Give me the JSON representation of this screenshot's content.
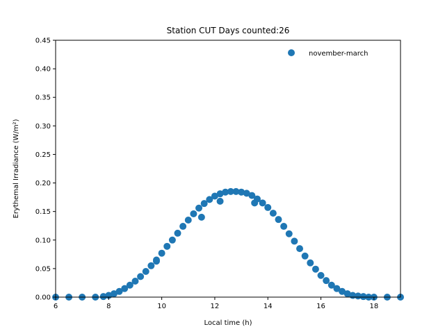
{
  "chart_data": {
    "type": "scatter",
    "title": "Station CUT Days counted:26",
    "xlabel": "Local time (h)",
    "ylabel": "Erythemal Irradiance (W/m²)",
    "xlim": [
      6,
      19
    ],
    "ylim": [
      0.0,
      0.45
    ],
    "xticks": [
      6,
      8,
      10,
      12,
      14,
      16,
      18
    ],
    "xtick_labels": [
      "6",
      "8",
      "10",
      "12",
      "14",
      "16",
      "18"
    ],
    "yticks": [
      0.0,
      0.05,
      0.1,
      0.15,
      0.2,
      0.25,
      0.3,
      0.35,
      0.4,
      0.45
    ],
    "ytick_labels": [
      "0.00",
      "0.05",
      "0.10",
      "0.15",
      "0.20",
      "0.25",
      "0.30",
      "0.35",
      "0.40",
      "0.45"
    ],
    "grid": false,
    "legend_position": "top-right",
    "color": "#1f77b4",
    "series": [
      {
        "name": "november-march",
        "x": [
          6.0,
          6.5,
          7.0,
          7.5,
          7.8,
          8.0,
          8.2,
          8.4,
          8.6,
          8.8,
          9.0,
          9.2,
          9.4,
          9.6,
          9.8,
          10.0,
          10.2,
          10.4,
          10.6,
          10.8,
          11.0,
          11.2,
          11.4,
          11.6,
          11.8,
          12.0,
          12.2,
          12.4,
          12.6,
          12.8,
          13.0,
          13.2,
          13.4,
          13.6,
          13.8,
          14.0,
          14.2,
          14.4,
          14.6,
          14.8,
          15.0,
          15.2,
          15.4,
          15.6,
          15.8,
          16.0,
          16.2,
          16.4,
          16.6,
          16.8,
          17.0,
          17.2,
          17.4,
          17.6,
          17.8,
          18.0,
          18.5,
          19.0,
          9.8,
          11.5,
          12.2,
          13.5
        ],
        "y": [
          0.0,
          0.0,
          0.0,
          0.0,
          0.001,
          0.003,
          0.006,
          0.01,
          0.015,
          0.021,
          0.028,
          0.036,
          0.045,
          0.055,
          0.065,
          0.077,
          0.089,
          0.1,
          0.112,
          0.124,
          0.135,
          0.146,
          0.156,
          0.164,
          0.171,
          0.177,
          0.181,
          0.184,
          0.185,
          0.185,
          0.184,
          0.182,
          0.178,
          0.172,
          0.165,
          0.157,
          0.147,
          0.136,
          0.124,
          0.111,
          0.098,
          0.085,
          0.072,
          0.06,
          0.049,
          0.038,
          0.029,
          0.021,
          0.015,
          0.01,
          0.006,
          0.003,
          0.002,
          0.001,
          0.0,
          0.0,
          0.0,
          0.0,
          0.063,
          0.14,
          0.168,
          0.165
        ]
      }
    ]
  }
}
